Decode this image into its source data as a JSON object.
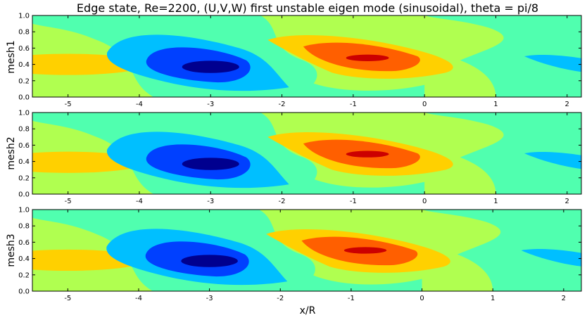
{
  "chart_data": {
    "type": "heatmap",
    "title": "Edge state, Re=2200, (U,V,W) first unstable eigen mode (sinusoidal), theta = pi/8",
    "xlabel": "x/R",
    "colors": {
      "level_m4": "#00008f",
      "level_m3": "#0040ff",
      "level_m2": "#00bfff",
      "level_0": "#50ffaf",
      "level_1": "#b0ff50",
      "level_2": "#ffd000",
      "level_3": "#ff5f00",
      "level_4": "#cc0000"
    },
    "panels": [
      {
        "ylabel": "mesh1",
        "xlim": [
          -5.5,
          2.2
        ],
        "ylim": [
          0.0,
          1.0
        ],
        "xticks": [
          "-5",
          "-4",
          "-3",
          "-2",
          "-1",
          "0",
          "1",
          "2"
        ],
        "yticks": [
          "0.0",
          "0.2",
          "0.4",
          "0.6",
          "0.8",
          "1.0"
        ]
      },
      {
        "ylabel": "mesh2",
        "xlim": [
          -5.5,
          2.2
        ],
        "ylim": [
          0.0,
          1.0
        ],
        "xticks": [
          "-5",
          "-4",
          "-3",
          "-2",
          "-1",
          "0",
          "1",
          "2"
        ],
        "yticks": [
          "0.0",
          "0.2",
          "0.4",
          "0.6",
          "0.8",
          "1.0"
        ]
      },
      {
        "ylabel": "mesh3",
        "xlim": [
          -5.5,
          2.25
        ],
        "ylim": [
          0.0,
          1.0
        ],
        "xticks": [
          "-5",
          "-4",
          "-3",
          "-2",
          "-1",
          "0",
          "1",
          "2"
        ],
        "yticks": [
          "0.0",
          "0.2",
          "0.4",
          "0.6",
          "0.8",
          "1.0"
        ]
      }
    ]
  }
}
